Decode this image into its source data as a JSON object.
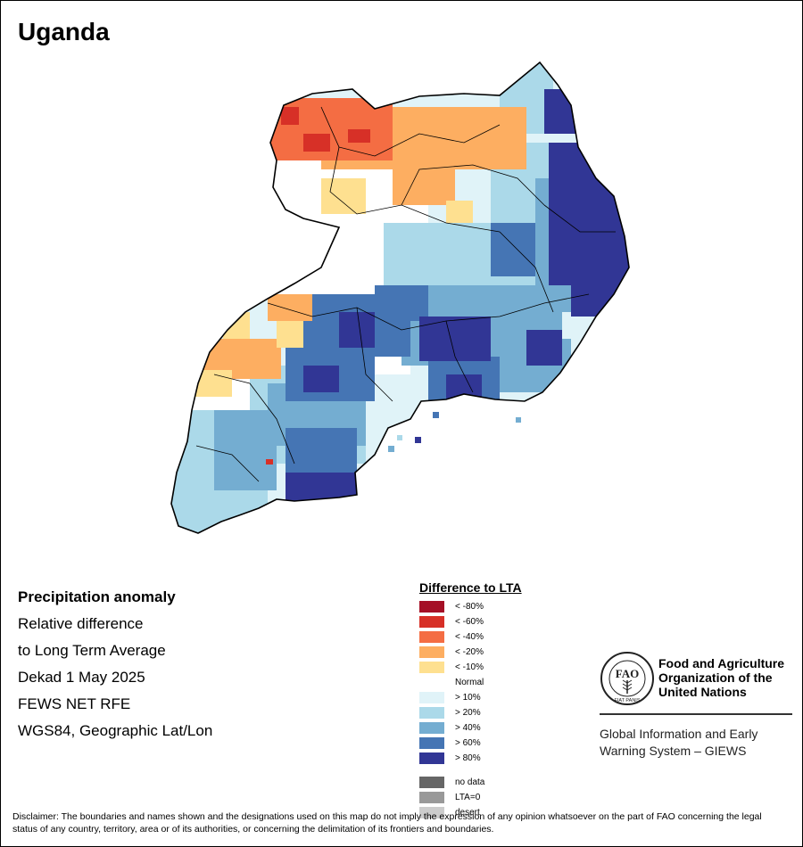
{
  "title": "Uganda",
  "info": {
    "heading": "Precipitation anomaly",
    "line1": "Relative difference",
    "line2": "to Long Term Average",
    "period": "Dekad 1 May 2025",
    "source": "FEWS NET RFE",
    "projection": "WGS84, Geographic Lat/Lon"
  },
  "legend": {
    "title": "Difference to LTA",
    "items": [
      {
        "label": "< -80%",
        "color": "#a50f26"
      },
      {
        "label": "< -60%",
        "color": "#d73027"
      },
      {
        "label": "< -40%",
        "color": "#f46d43"
      },
      {
        "label": "< -20%",
        "color": "#fdae61"
      },
      {
        "label": "< -10%",
        "color": "#fee090"
      },
      {
        "label": "Normal",
        "color": "#ffffff"
      },
      {
        "label": "> 10%",
        "color": "#e0f3f8"
      },
      {
        "label": "> 20%",
        "color": "#abd9e9"
      },
      {
        "label": "> 40%",
        "color": "#74add1"
      },
      {
        "label": "> 60%",
        "color": "#4575b4"
      },
      {
        "label": "> 80%",
        "color": "#313695"
      }
    ],
    "extra": [
      {
        "label": "no data",
        "color": "#666666"
      },
      {
        "label": "LTA=0",
        "color": "#999999"
      },
      {
        "label": "desert",
        "color": "#cccccc"
      }
    ]
  },
  "fao": {
    "name_line1": "Food and Agriculture",
    "name_line2": "Organization of the",
    "name_line3": "United Nations",
    "giews_line1": "Global Information and Early",
    "giews_line2": "Warning System – GIEWS",
    "logo_text": "FAO",
    "logo_motto": "FIAT PANIS"
  },
  "disclaimer": "Disclaimer: The boundaries and names shown and the designations used on this map do not imply the expression of any opinion whatsoever on the part of FAO concerning the legal status of any country, territory, area or of its authorities, or concerning the delimitation of its frontiers and boundaries."
}
